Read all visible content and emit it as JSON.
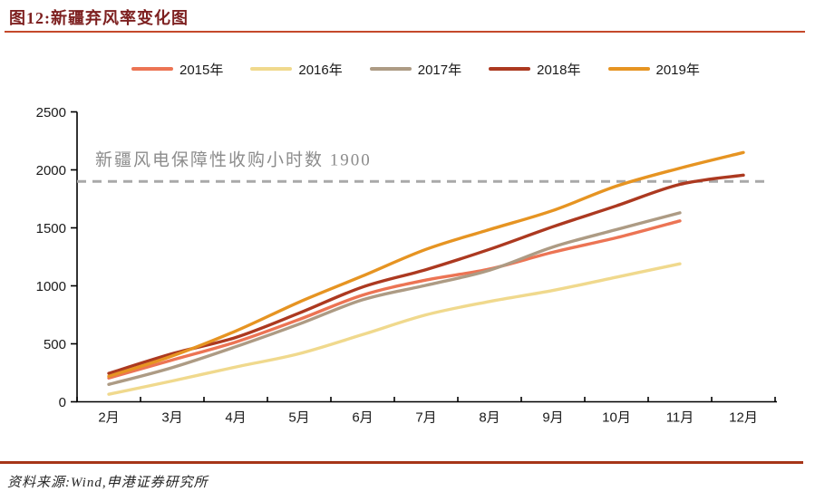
{
  "figure": {
    "title": "图12:新疆弃风率变化图",
    "source": "资料来源:Wind,申港证券研究所"
  },
  "chart_data": {
    "type": "line",
    "title": "新疆弃风率变化图",
    "xlabel": "",
    "ylabel": "",
    "categories": [
      "2月",
      "3月",
      "4月",
      "5月",
      "6月",
      "7月",
      "8月",
      "9月",
      "10月",
      "11月",
      "12月"
    ],
    "series": [
      {
        "name": "2015年",
        "color": "#EC7454",
        "values": [
          205,
          360,
          515,
          710,
          920,
          1050,
          1145,
          1290,
          1415,
          1560,
          null
        ]
      },
      {
        "name": "2016年",
        "color": "#F0D98D",
        "values": [
          65,
          180,
          300,
          415,
          580,
          750,
          865,
          960,
          1075,
          1190,
          null
        ]
      },
      {
        "name": "2017年",
        "color": "#AD9B84",
        "values": [
          150,
          295,
          475,
          670,
          880,
          1005,
          1135,
          1335,
          1485,
          1630,
          null
        ]
      },
      {
        "name": "2018年",
        "color": "#AC3920",
        "values": [
          245,
          415,
          555,
          765,
          990,
          1140,
          1315,
          1510,
          1690,
          1875,
          1955
        ]
      },
      {
        "name": "2019年",
        "color": "#E69422",
        "values": [
          220,
          395,
          610,
          860,
          1085,
          1315,
          1485,
          1650,
          1860,
          2015,
          2150
        ]
      }
    ],
    "ylim": [
      0,
      2500
    ],
    "ytick_step": 500,
    "grid": false,
    "legend_position": "top",
    "annotation": {
      "text": "新疆风电保障性收购小时数 1900",
      "value": 1900,
      "text_color": "#8C8C8C",
      "line_color": "#A9A9A9"
    }
  },
  "colors": {
    "title": "#7E2121",
    "top_rule": "#C5492B",
    "bottom_rule": "#A63518",
    "axis": "#000000"
  }
}
